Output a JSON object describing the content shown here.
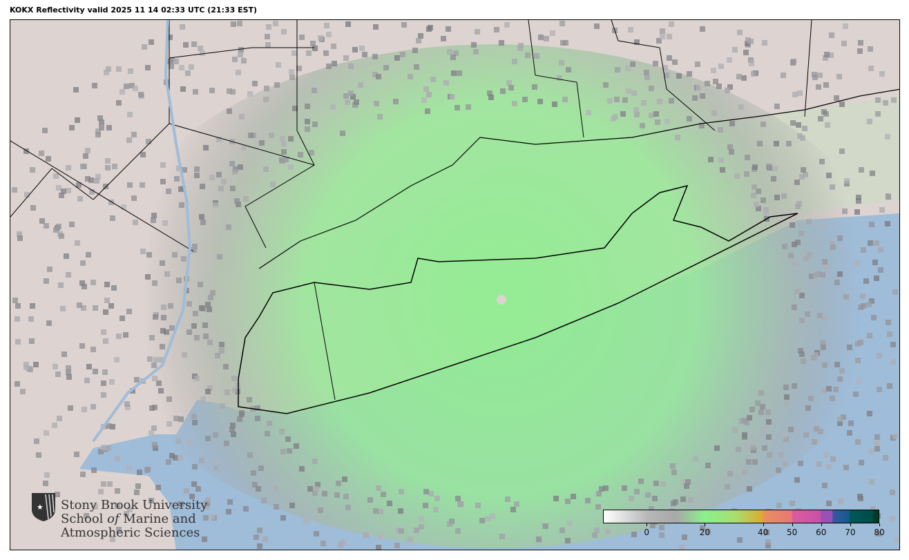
{
  "title": "KOKX Reflectivity valid 2025 11 14 02:33 UTC (21:33 EST)",
  "colors": {
    "land": "#ddd3d0",
    "ocean": "#9fbcd8",
    "echo": "#90ee90",
    "clutter": "#9a9a9a",
    "boundary": "#000000"
  },
  "logo": {
    "line1": "Stony Brook University",
    "line2a": "School ",
    "line2b": "of",
    "line2c": " Marine and",
    "line3": "Atmospheric Sciences",
    "icon": "shield-star-icon"
  },
  "colorbar": {
    "range": [
      -15,
      80
    ],
    "ticks": [
      {
        "value": 0,
        "label": "0"
      },
      {
        "value": 20,
        "label": "20"
      },
      {
        "value": 40,
        "label": "40"
      },
      {
        "value": 50,
        "label": "50"
      },
      {
        "value": 60,
        "label": "60"
      },
      {
        "value": 70,
        "label": "70"
      },
      {
        "value": 80,
        "label": "80"
      }
    ],
    "stops": [
      [
        -15,
        "#ffffff"
      ],
      [
        0,
        "#b8b8b8"
      ],
      [
        10,
        "#a8a8a8"
      ],
      [
        20,
        "#8cf08c"
      ],
      [
        30,
        "#a6e070"
      ],
      [
        40,
        "#dcaa30"
      ],
      [
        40.1,
        "#e8905c"
      ],
      [
        50,
        "#e87878"
      ],
      [
        50.1,
        "#dc5c9c"
      ],
      [
        60,
        "#c850a8"
      ],
      [
        60.1,
        "#9a50b4"
      ],
      [
        64,
        "#9a50b4"
      ],
      [
        64.1,
        "#3a58a0"
      ],
      [
        70,
        "#105a8c"
      ],
      [
        70.1,
        "#005858"
      ],
      [
        78,
        "#004c48"
      ],
      [
        78.1,
        "#003c28"
      ],
      [
        80,
        "#003c28"
      ]
    ]
  }
}
